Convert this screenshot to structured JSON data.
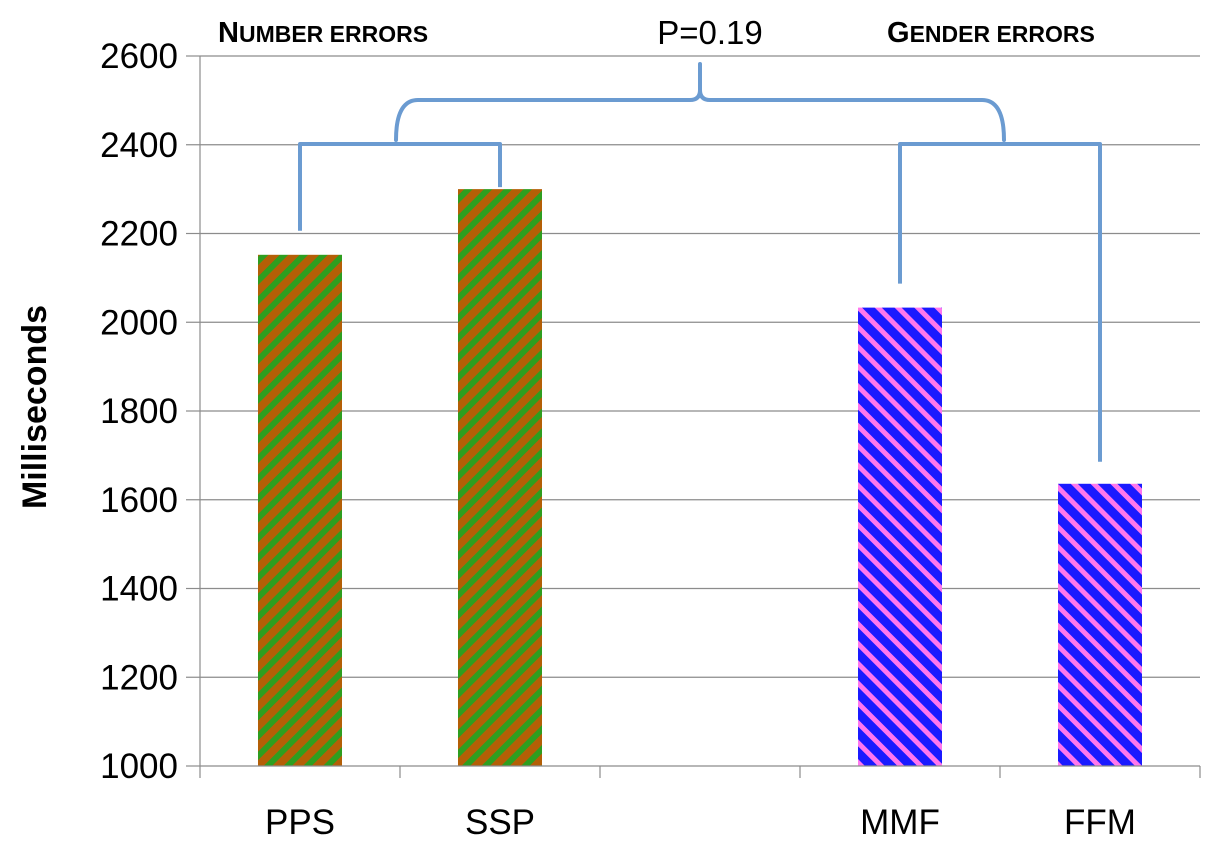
{
  "chart_data": {
    "type": "bar",
    "categories": [
      "PPS",
      "SSP",
      "",
      "MMF",
      "FFM"
    ],
    "values": [
      2152,
      2300,
      null,
      2033,
      1636
    ],
    "ylabel": "Milliseconds",
    "xlabel": "",
    "ylim": [
      1000,
      2600
    ],
    "yticks": [
      1000,
      1200,
      1400,
      1600,
      1800,
      2000,
      2200,
      2400,
      2600
    ],
    "grid": true,
    "groups": [
      {
        "label_initial": "N",
        "label_rest": "UMBER ERRORS",
        "categories": [
          "PPS",
          "SSP"
        ],
        "fill_color": "#b45f06",
        "stripe_color": "#2e9e1f"
      },
      {
        "label_initial": "G",
        "label_rest": "ENDER ERRORS",
        "categories": [
          "MMF",
          "FFM"
        ],
        "fill_color": "#1a1aff",
        "stripe_color": "#ff77ee"
      }
    ],
    "annotations": [
      {
        "text": "P=0.19",
        "between": [
          "NUMBER ERRORS",
          "GENDER ERRORS"
        ]
      }
    ],
    "bracket_color": "#6b9bd1"
  }
}
